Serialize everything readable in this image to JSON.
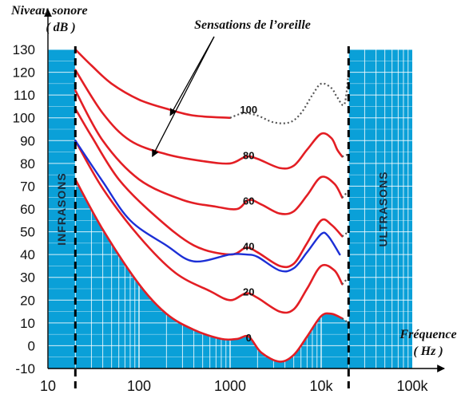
{
  "chart_data": {
    "type": "line",
    "title": "Sensations de l’oreille",
    "ylabel": "Niveau sonore",
    "ylabel_unit": "( dB )",
    "xlabel": "Fréquence",
    "xlabel_unit": "( Hz )",
    "x_scale": "log",
    "xlim": [
      10,
      100000
    ],
    "ylim": [
      -10,
      130
    ],
    "x_ticks": [
      {
        "value": 10,
        "label": "10"
      },
      {
        "value": 100,
        "label": "100"
      },
      {
        "value": 1000,
        "label": "1000"
      },
      {
        "value": 10000,
        "label": "10k"
      },
      {
        "value": 100000,
        "label": "100k"
      }
    ],
    "y_ticks": [
      130,
      120,
      110,
      100,
      90,
      80,
      70,
      60,
      50,
      40,
      30,
      20,
      10,
      0,
      -10
    ],
    "grid": true,
    "colors": {
      "region": "#0aa0d8",
      "grid": "#ffffff",
      "curve": "#e31e24",
      "blue_curve": "#1c2fd6",
      "dotted": "#555555",
      "boundary": "#000000"
    },
    "regions": [
      {
        "name": "INFRASONS",
        "x_range": [
          10,
          20
        ]
      },
      {
        "name": "ULTRASONS",
        "x_range": [
          20000,
          100000
        ]
      }
    ],
    "boundaries_hz": [
      20,
      20000
    ],
    "series": [
      {
        "label": "100",
        "label_at": [
          1600,
          103
        ],
        "points": [
          [
            20,
            130
          ],
          [
            30,
            123
          ],
          [
            50,
            115
          ],
          [
            100,
            108
          ],
          [
            200,
            104
          ],
          [
            400,
            101
          ],
          [
            1000,
            100
          ]
        ],
        "dotted": [
          [
            1000,
            100
          ],
          [
            1400,
            102
          ],
          [
            2000,
            101
          ],
          [
            3000,
            98
          ],
          [
            4500,
            98
          ],
          [
            6000,
            102
          ],
          [
            8000,
            110
          ],
          [
            10000,
            115
          ],
          [
            13000,
            113
          ],
          [
            15000,
            109
          ],
          [
            18000,
            106
          ],
          [
            20000,
            120
          ]
        ]
      },
      {
        "label": "80",
        "label_at": [
          1600,
          83
        ],
        "points": [
          [
            20,
            121
          ],
          [
            40,
            102
          ],
          [
            80,
            90
          ],
          [
            200,
            84
          ],
          [
            500,
            81
          ],
          [
            1000,
            80
          ],
          [
            1500,
            83
          ],
          [
            2000,
            82
          ],
          [
            3500,
            78
          ],
          [
            5000,
            79
          ],
          [
            7000,
            86
          ],
          [
            10000,
            93
          ],
          [
            13000,
            91
          ],
          [
            15000,
            86
          ],
          [
            17000,
            83
          ]
        ],
        "dotted": [
          [
            17000,
            83
          ],
          [
            20000,
            84
          ]
        ]
      },
      {
        "label": "60",
        "label_at": [
          1600,
          63
        ],
        "points": [
          [
            20,
            112
          ],
          [
            40,
            90
          ],
          [
            100,
            73
          ],
          [
            300,
            64
          ],
          [
            700,
            61
          ],
          [
            1200,
            60
          ],
          [
            1600,
            64
          ],
          [
            2200,
            62
          ],
          [
            3500,
            58
          ],
          [
            5000,
            59
          ],
          [
            7000,
            66
          ],
          [
            10000,
            74
          ],
          [
            14000,
            71
          ],
          [
            17000,
            65
          ]
        ],
        "dotted": [
          [
            17000,
            65
          ],
          [
            20000,
            68
          ]
        ]
      },
      {
        "label": "40",
        "label_at": [
          1600,
          43
        ],
        "points": [
          [
            20,
            104
          ],
          [
            30,
            92
          ],
          [
            60,
            73
          ],
          [
            150,
            57
          ],
          [
            400,
            44
          ],
          [
            1000,
            40
          ],
          [
            1500,
            43
          ],
          [
            2000,
            41
          ],
          [
            3500,
            35
          ],
          [
            5000,
            36
          ],
          [
            7000,
            45
          ],
          [
            10000,
            55
          ],
          [
            13000,
            53
          ],
          [
            17000,
            48
          ]
        ],
        "dotted": [
          [
            17000,
            48
          ],
          [
            20000,
            50
          ]
        ]
      },
      {
        "label": "20",
        "label_at": [
          1600,
          23
        ],
        "points": [
          [
            20,
            90
          ],
          [
            40,
            69
          ],
          [
            100,
            48
          ],
          [
            250,
            32
          ],
          [
            600,
            24
          ],
          [
            1000,
            20
          ],
          [
            1500,
            23
          ],
          [
            2000,
            21
          ],
          [
            3500,
            15
          ],
          [
            5000,
            16
          ],
          [
            7000,
            25
          ],
          [
            10000,
            35
          ],
          [
            14000,
            33
          ],
          [
            17000,
            27
          ]
        ],
        "dotted": [
          [
            17000,
            27
          ],
          [
            20000,
            30
          ]
        ]
      },
      {
        "label": "0",
        "label_at": [
          1600,
          3
        ],
        "points": [
          [
            20,
            73
          ],
          [
            40,
            51
          ],
          [
            100,
            27
          ],
          [
            200,
            14
          ],
          [
            400,
            7
          ],
          [
            800,
            3
          ],
          [
            1200,
            3
          ],
          [
            1600,
            4
          ],
          [
            2200,
            -3
          ],
          [
            3500,
            -7
          ],
          [
            5000,
            -4
          ],
          [
            7000,
            4
          ],
          [
            10000,
            13
          ],
          [
            13000,
            14
          ],
          [
            17000,
            12
          ]
        ],
        "dotted": [
          [
            17000,
            12
          ],
          [
            20000,
            10
          ]
        ]
      }
    ],
    "blue_series": {
      "points": [
        [
          20,
          90
        ],
        [
          40,
          72
        ],
        [
          80,
          55
        ],
        [
          200,
          44
        ],
        [
          400,
          37
        ],
        [
          1000,
          40
        ],
        [
          1500,
          40
        ],
        [
          2000,
          39
        ],
        [
          3500,
          33
        ],
        [
          5000,
          34
        ],
        [
          7000,
          41
        ],
        [
          10000,
          49
        ],
        [
          12000,
          48
        ],
        [
          16000,
          40
        ]
      ]
    },
    "annotation": {
      "text": "Sensations de l’oreille",
      "arrow_targets": [
        [
          220,
          100
        ],
        [
          140,
          82
        ]
      ]
    }
  }
}
